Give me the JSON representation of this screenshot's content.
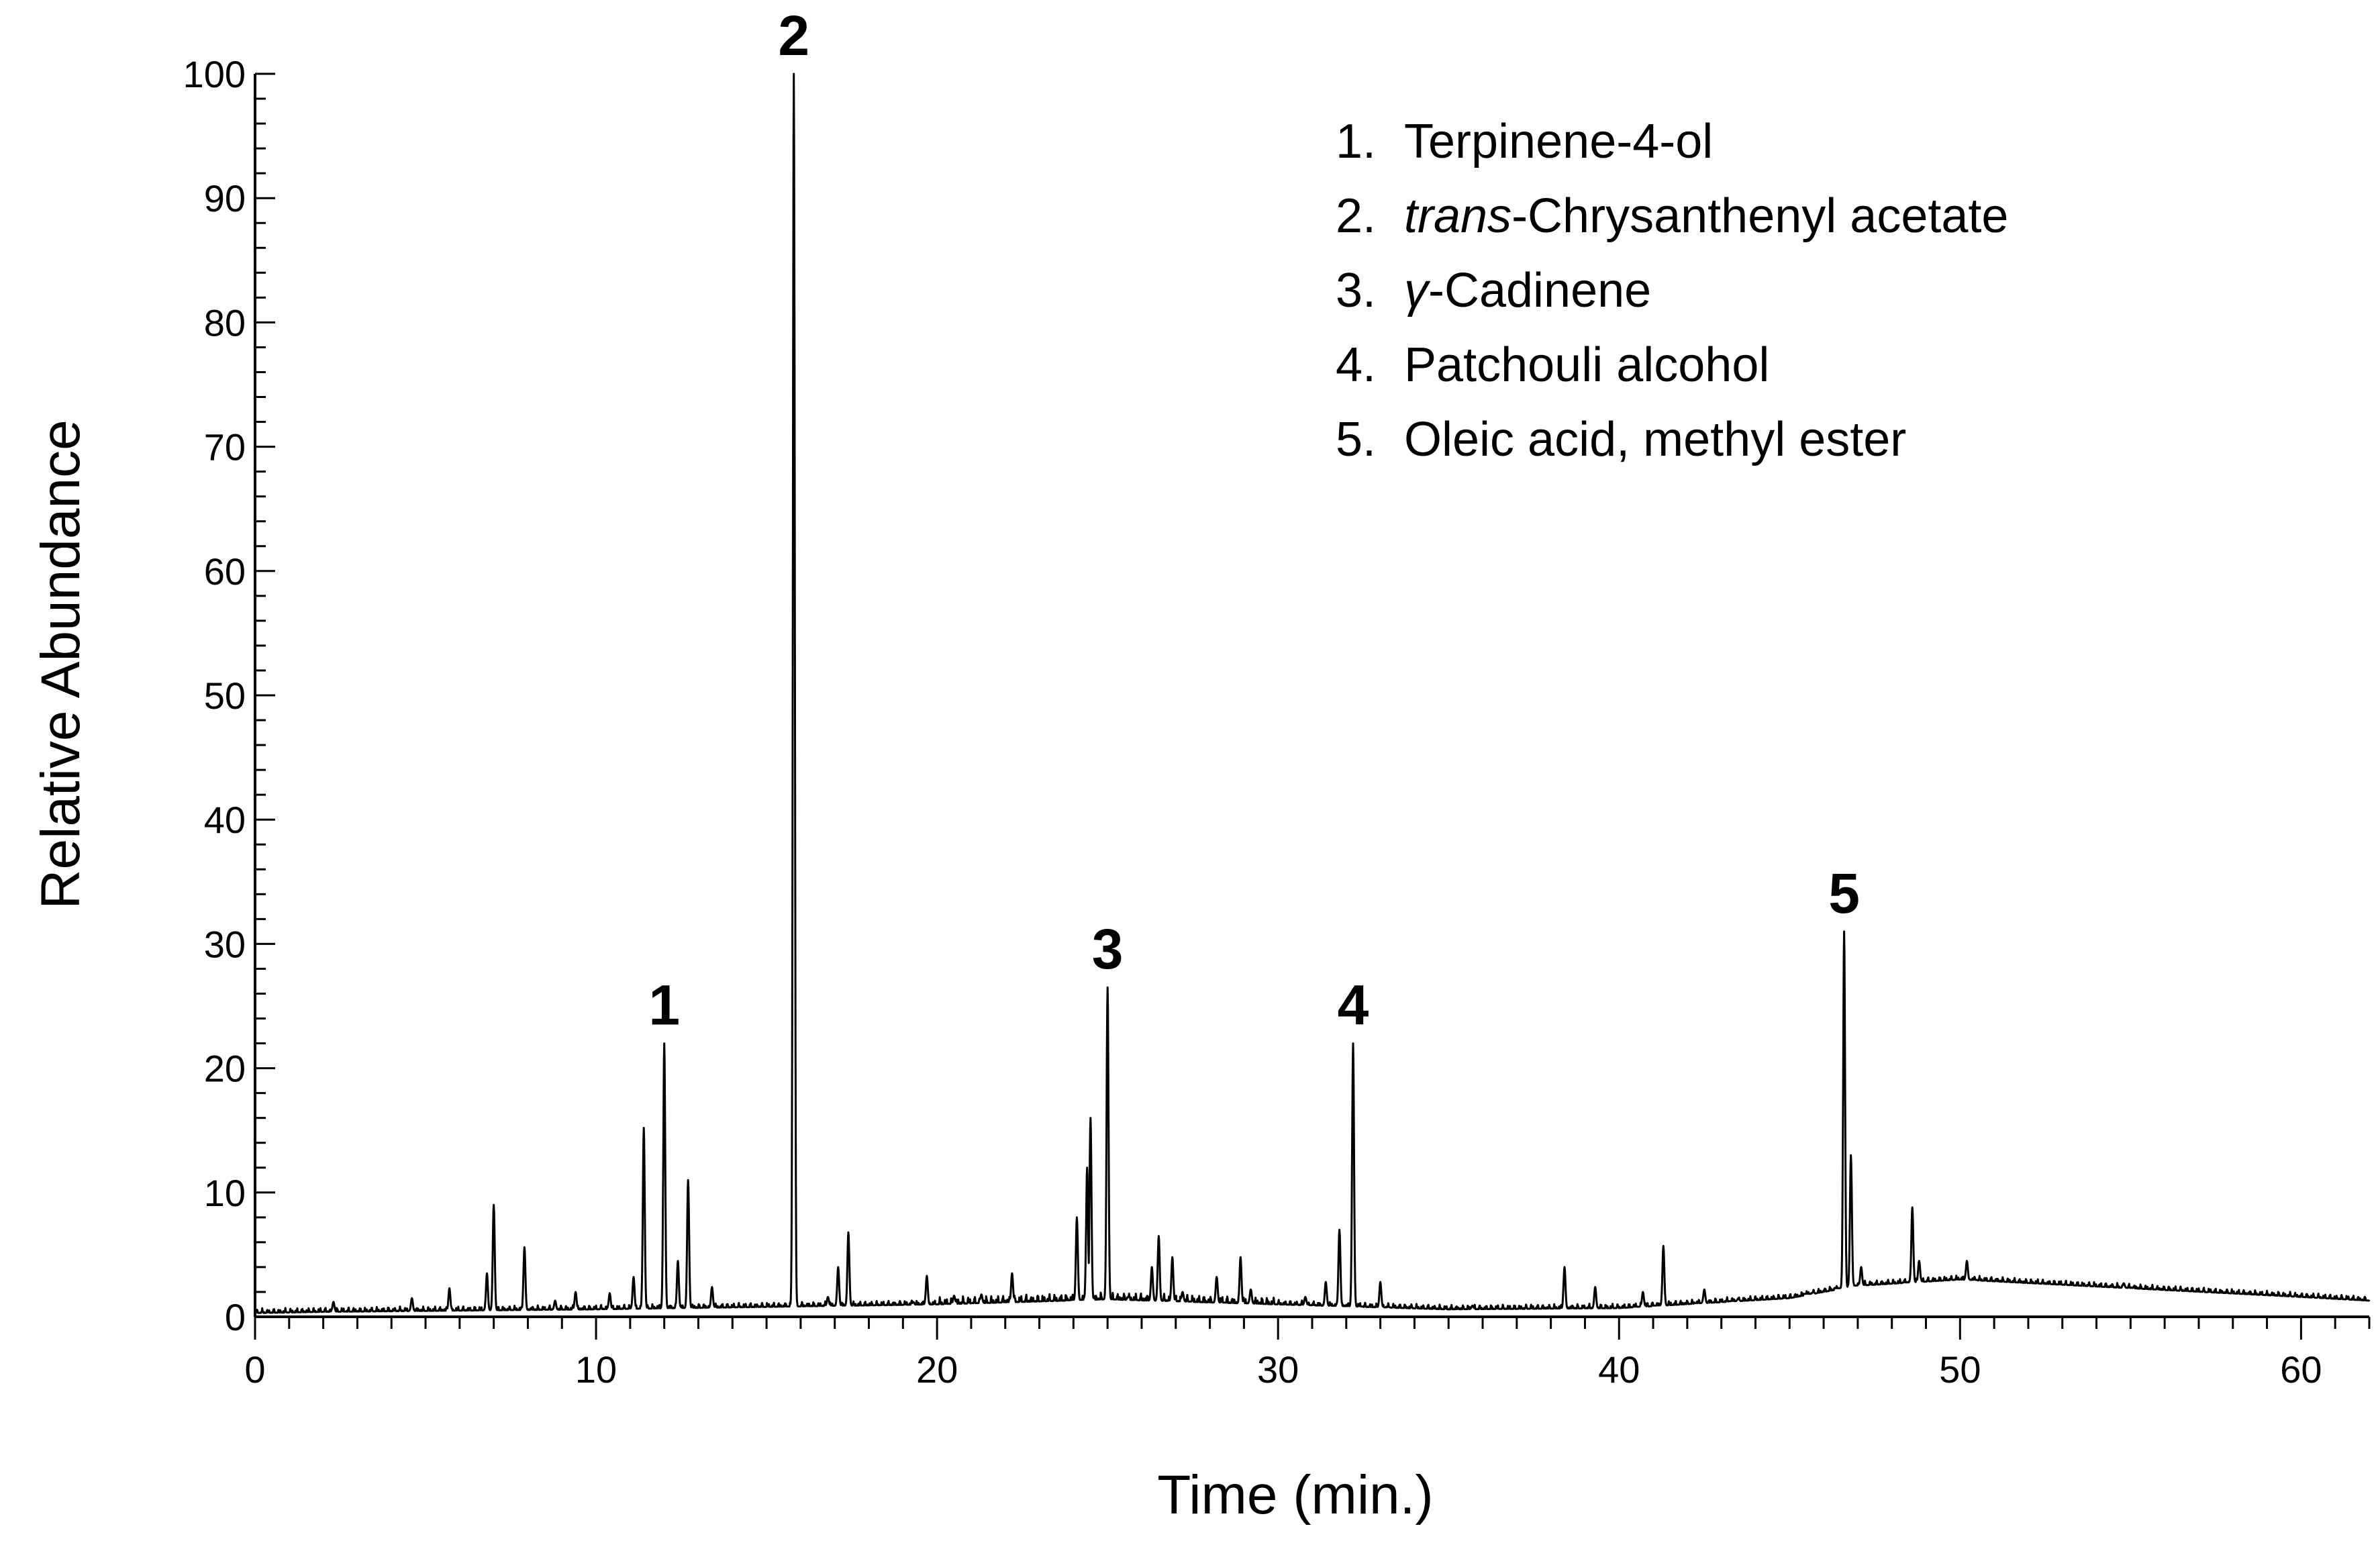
{
  "chart_data": {
    "type": "line",
    "xlabel": "Time (min.)",
    "ylabel": "Relative Abundance",
    "xlim": [
      0,
      62
    ],
    "ylim": [
      0,
      100
    ],
    "x_ticks": [
      0,
      10,
      20,
      30,
      40,
      50,
      60
    ],
    "y_ticks": [
      0,
      10,
      20,
      30,
      40,
      50,
      60,
      70,
      80,
      90,
      100
    ],
    "baseline": [
      [
        0.0,
        0.3
      ],
      [
        2.0,
        0.4
      ],
      [
        10.0,
        0.6
      ],
      [
        15.0,
        0.8
      ],
      [
        20.0,
        1.0
      ],
      [
        25.0,
        1.4
      ],
      [
        30.0,
        1.0
      ],
      [
        35.0,
        0.6
      ],
      [
        40.0,
        0.7
      ],
      [
        45.0,
        1.5
      ],
      [
        47.0,
        2.5
      ],
      [
        50.0,
        3.0
      ],
      [
        55.0,
        2.3
      ],
      [
        60.0,
        1.6
      ],
      [
        62.0,
        1.3
      ]
    ],
    "peaks": [
      [
        2.3,
        1.2
      ],
      [
        4.6,
        1.5
      ],
      [
        5.7,
        2.3
      ],
      [
        6.8,
        3.5
      ],
      [
        7.0,
        9.0
      ],
      [
        7.9,
        5.6
      ],
      [
        8.8,
        1.3
      ],
      [
        9.4,
        2.0
      ],
      [
        10.4,
        1.9
      ],
      [
        11.1,
        3.2
      ],
      [
        11.4,
        15.2
      ],
      [
        12.0,
        22.0
      ],
      [
        12.4,
        4.5
      ],
      [
        12.7,
        11.0
      ],
      [
        13.4,
        2.4
      ],
      [
        15.8,
        100.0
      ],
      [
        16.8,
        1.6
      ],
      [
        17.1,
        4.0
      ],
      [
        17.4,
        6.8
      ],
      [
        19.3,
        1.2
      ],
      [
        19.7,
        3.3
      ],
      [
        20.5,
        1.7
      ],
      [
        21.3,
        1.8
      ],
      [
        22.2,
        3.5
      ],
      [
        24.1,
        8.0
      ],
      [
        24.4,
        12.0
      ],
      [
        24.5,
        16.0
      ],
      [
        25.0,
        26.5
      ],
      [
        25.6,
        1.6
      ],
      [
        26.3,
        4.0
      ],
      [
        26.5,
        6.5
      ],
      [
        26.9,
        4.8
      ],
      [
        27.2,
        2.0
      ],
      [
        28.2,
        3.2
      ],
      [
        28.9,
        4.8
      ],
      [
        29.2,
        2.2
      ],
      [
        30.8,
        1.6
      ],
      [
        31.4,
        2.8
      ],
      [
        31.8,
        7.0
      ],
      [
        32.2,
        22.0
      ],
      [
        33.0,
        2.8
      ],
      [
        35.7,
        0.9
      ],
      [
        38.4,
        4.0
      ],
      [
        39.3,
        2.4
      ],
      [
        40.7,
        2.0
      ],
      [
        41.3,
        5.7
      ],
      [
        42.5,
        2.2
      ],
      [
        43.5,
        1.5
      ],
      [
        45.7,
        2.0
      ],
      [
        46.6,
        31.0
      ],
      [
        46.8,
        13.0
      ],
      [
        47.1,
        4.0
      ],
      [
        48.6,
        8.8
      ],
      [
        48.8,
        4.5
      ],
      [
        50.2,
        4.5
      ],
      [
        54.8,
        2.7
      ]
    ],
    "peak_annotations": [
      {
        "label": "1",
        "x": 12.0,
        "y": 22.0
      },
      {
        "label": "2",
        "x": 15.8,
        "y": 100.0
      },
      {
        "label": "3",
        "x": 25.0,
        "y": 26.5
      },
      {
        "label": "4",
        "x": 32.2,
        "y": 22.0
      },
      {
        "label": "5",
        "x": 46.6,
        "y": 31.0
      }
    ],
    "legend": {
      "position": "top-right",
      "entries": [
        {
          "num": "1.",
          "italic": "",
          "text": "Terpinene-4-ol"
        },
        {
          "num": "2.",
          "italic": "trans",
          "text": "-Chrysanthenyl acetate"
        },
        {
          "num": "3.",
          "italic": "γ",
          "text": "-Cadinene"
        },
        {
          "num": "4.",
          "italic": "",
          "text": "Patchouli alcohol"
        },
        {
          "num": "5.",
          "italic": "",
          "text": "Oleic acid, methyl ester"
        }
      ]
    }
  }
}
